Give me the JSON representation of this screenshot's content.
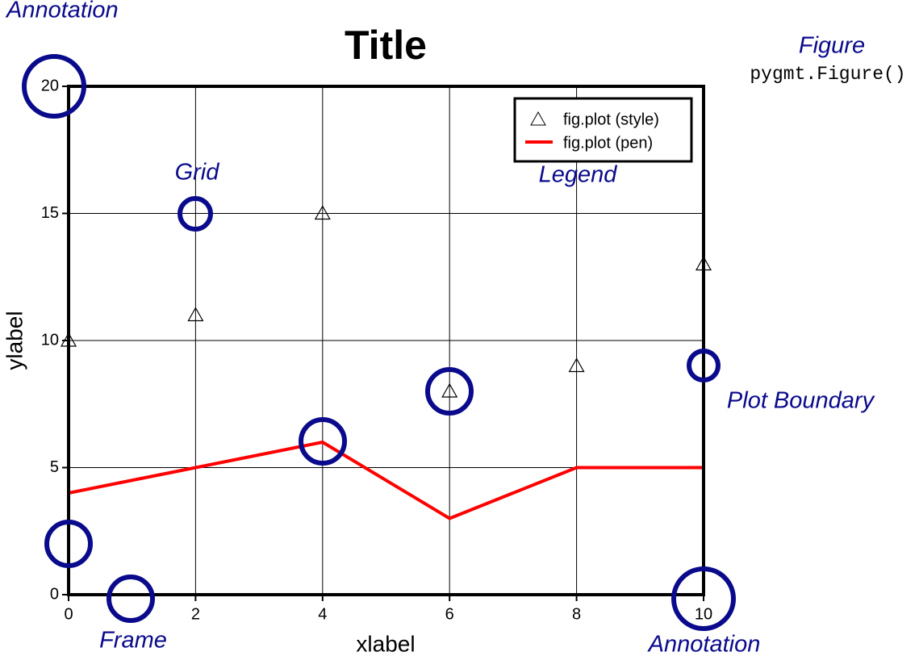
{
  "chart_data": {
    "type": "line",
    "title": "Title",
    "x_label": "xlabel",
    "y_label": "ylabel",
    "x": [
      0,
      2,
      4,
      6,
      8,
      10
    ],
    "series": [
      {
        "name": "fig.plot (style)",
        "color": "#000000",
        "marker": "triangle",
        "values": [
          10,
          11,
          15,
          8,
          9,
          13
        ]
      },
      {
        "name": "fig.plot (pen)",
        "color": "#ff0000",
        "values": [
          4,
          5,
          6,
          3,
          5,
          5
        ]
      }
    ],
    "xlim": [
      0,
      10
    ],
    "xticks": [
      0,
      2,
      4,
      6,
      8,
      10
    ],
    "ylim": [
      0,
      20
    ],
    "yticks": [
      0,
      5,
      10,
      15,
      20
    ],
    "grid": true,
    "legend": "upper right",
    "annotations": [
      "Annotation",
      "Figure",
      "pygmt.Figure()",
      "Grid",
      "Legend",
      "Plot Boundary",
      "Frame",
      "Annotation"
    ]
  }
}
